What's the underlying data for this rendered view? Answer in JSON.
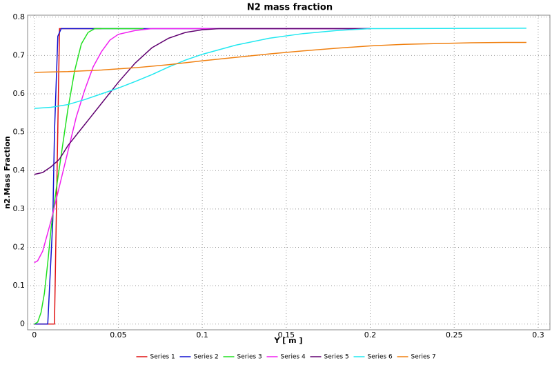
{
  "chart_data": {
    "type": "line",
    "title": "N2 mass fraction",
    "x_label": "Y [ m ]",
    "y_label": "n2.Mass Fraction",
    "xlim": [
      -0.004,
      0.307
    ],
    "ylim": [
      -0.015,
      0.805
    ],
    "xticks": [
      0,
      0.05,
      0.1,
      0.15,
      0.2,
      0.25,
      0.3
    ],
    "yticks": [
      0,
      0.1,
      0.2,
      0.3,
      0.4,
      0.5,
      0.6,
      0.7,
      0.8
    ],
    "grid": true,
    "legend": "bottom",
    "series": [
      {
        "name": "Series 1",
        "color": "#e01010",
        "x": [
          0,
          0.012,
          0.015,
          0.04
        ],
        "values": [
          0,
          0,
          0.77,
          0.77
        ]
      },
      {
        "name": "Series 2",
        "color": "#1010d0",
        "x": [
          0,
          0.008,
          0.009,
          0.011,
          0.012,
          0.014,
          0.016,
          0.2
        ],
        "values": [
          0,
          0,
          0.09,
          0.27,
          0.5,
          0.75,
          0.77,
          0.77
        ]
      },
      {
        "name": "Series 3",
        "color": "#20e020",
        "x": [
          0,
          0.002,
          0.004,
          0.006,
          0.008,
          0.01,
          0.013,
          0.016,
          0.02,
          0.024,
          0.028,
          0.032,
          0.036,
          0.065
        ],
        "values": [
          0,
          0.005,
          0.03,
          0.08,
          0.16,
          0.25,
          0.35,
          0.44,
          0.56,
          0.66,
          0.73,
          0.76,
          0.77,
          0.77
        ]
      },
      {
        "name": "Series 4",
        "color": "#f020f0",
        "x": [
          0,
          0.002,
          0.005,
          0.01,
          0.015,
          0.02,
          0.025,
          0.03,
          0.035,
          0.04,
          0.045,
          0.05,
          0.06,
          0.07,
          0.2
        ],
        "values": [
          0.16,
          0.165,
          0.19,
          0.27,
          0.36,
          0.45,
          0.54,
          0.61,
          0.67,
          0.71,
          0.74,
          0.755,
          0.765,
          0.77,
          0.77
        ]
      },
      {
        "name": "Series 5",
        "color": "#600070",
        "x": [
          0,
          0.005,
          0.01,
          0.015,
          0.02,
          0.03,
          0.04,
          0.05,
          0.06,
          0.07,
          0.08,
          0.09,
          0.1,
          0.11,
          0.2
        ],
        "values": [
          0.39,
          0.395,
          0.41,
          0.43,
          0.465,
          0.52,
          0.575,
          0.63,
          0.68,
          0.72,
          0.745,
          0.76,
          0.767,
          0.77,
          0.77
        ]
      },
      {
        "name": "Series 6",
        "color": "#20e8f0",
        "x": [
          0,
          0.01,
          0.02,
          0.03,
          0.04,
          0.05,
          0.06,
          0.07,
          0.08,
          0.09,
          0.1,
          0.12,
          0.14,
          0.16,
          0.18,
          0.2,
          0.293
        ],
        "values": [
          0.562,
          0.565,
          0.572,
          0.585,
          0.6,
          0.615,
          0.632,
          0.65,
          0.67,
          0.688,
          0.703,
          0.727,
          0.745,
          0.757,
          0.765,
          0.77,
          0.771
        ]
      },
      {
        "name": "Series 7",
        "color": "#f08010",
        "x": [
          0,
          0.02,
          0.04,
          0.06,
          0.08,
          0.1,
          0.12,
          0.14,
          0.16,
          0.18,
          0.2,
          0.22,
          0.24,
          0.26,
          0.28,
          0.293
        ],
        "values": [
          0.656,
          0.658,
          0.662,
          0.668,
          0.676,
          0.686,
          0.695,
          0.704,
          0.712,
          0.719,
          0.725,
          0.729,
          0.731,
          0.733,
          0.734,
          0.734
        ]
      }
    ]
  }
}
